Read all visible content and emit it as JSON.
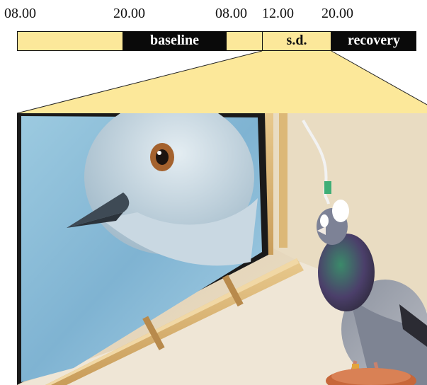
{
  "timeline": {
    "ticks": [
      "08.00",
      "20.00",
      "08.00",
      "12.00",
      "20.00"
    ],
    "segments": [
      {
        "label": "",
        "shade": "light"
      },
      {
        "label": "baseline",
        "shade": "dark"
      },
      {
        "label": "",
        "shade": "light"
      },
      {
        "label": "s.d.",
        "shade": "light"
      },
      {
        "label": "recovery",
        "shade": "dark"
      }
    ]
  },
  "colors": {
    "light_period": "#fce89a",
    "dark_period": "#0a0a0a",
    "zoom_wedge": "#fce89a"
  },
  "photo": {
    "subject": "pigeon-with-head-implant-facing-monitor",
    "monitor_content": "pigeon-head-closeup"
  }
}
